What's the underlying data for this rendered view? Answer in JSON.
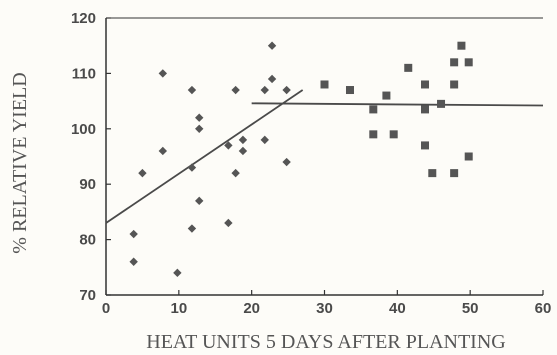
{
  "chart_data": {
    "type": "scatter",
    "title": "",
    "xlabel": "HEAT UNITS 5 DAYS AFTER PLANTING",
    "ylabel": "% RELATIVE YIELD",
    "xlim": [
      0,
      60
    ],
    "ylim": [
      70,
      120
    ],
    "x_ticks": [
      0,
      10,
      20,
      30,
      40,
      50,
      60
    ],
    "y_ticks": [
      70,
      80,
      90,
      100,
      110,
      120
    ],
    "grid": false,
    "colors": {
      "points": "#555555",
      "line": "#4a4a4a",
      "axes": "#333333"
    },
    "series": [
      {
        "marker": "diamond",
        "points": [
          [
            3.8,
            81
          ],
          [
            3.8,
            76
          ],
          [
            5,
            92
          ],
          [
            7.8,
            110
          ],
          [
            7.8,
            96
          ],
          [
            9.8,
            74
          ],
          [
            11.8,
            107
          ],
          [
            11.8,
            93
          ],
          [
            11.8,
            82
          ],
          [
            12.8,
            102
          ],
          [
            12.8,
            100
          ],
          [
            12.8,
            87
          ],
          [
            16.8,
            97
          ],
          [
            16.8,
            83
          ],
          [
            17.8,
            107
          ],
          [
            17.8,
            92
          ],
          [
            18.8,
            98
          ],
          [
            18.8,
            96
          ],
          [
            21.8,
            107
          ],
          [
            21.8,
            98
          ],
          [
            22.8,
            115
          ],
          [
            22.8,
            109
          ],
          [
            24.8,
            107
          ],
          [
            24.8,
            94
          ]
        ]
      },
      {
        "marker": "square",
        "points": [
          [
            30,
            108
          ],
          [
            33.5,
            107
          ],
          [
            36.7,
            103.5
          ],
          [
            36.7,
            99
          ],
          [
            38.5,
            106
          ],
          [
            39.5,
            99
          ],
          [
            41.5,
            111
          ],
          [
            43.8,
            108
          ],
          [
            43.8,
            103.5
          ],
          [
            43.8,
            97
          ],
          [
            44.8,
            92
          ],
          [
            46,
            104.5
          ],
          [
            47.8,
            112
          ],
          [
            47.8,
            108
          ],
          [
            47.8,
            92
          ],
          [
            48.8,
            115
          ],
          [
            49.8,
            112
          ],
          [
            49.8,
            95
          ]
        ]
      }
    ],
    "fit_lines": [
      {
        "x": [
          0,
          27
        ],
        "y": [
          83,
          107
        ]
      },
      {
        "x": [
          20,
          60
        ],
        "y": [
          104.6,
          104.2
        ]
      }
    ]
  }
}
